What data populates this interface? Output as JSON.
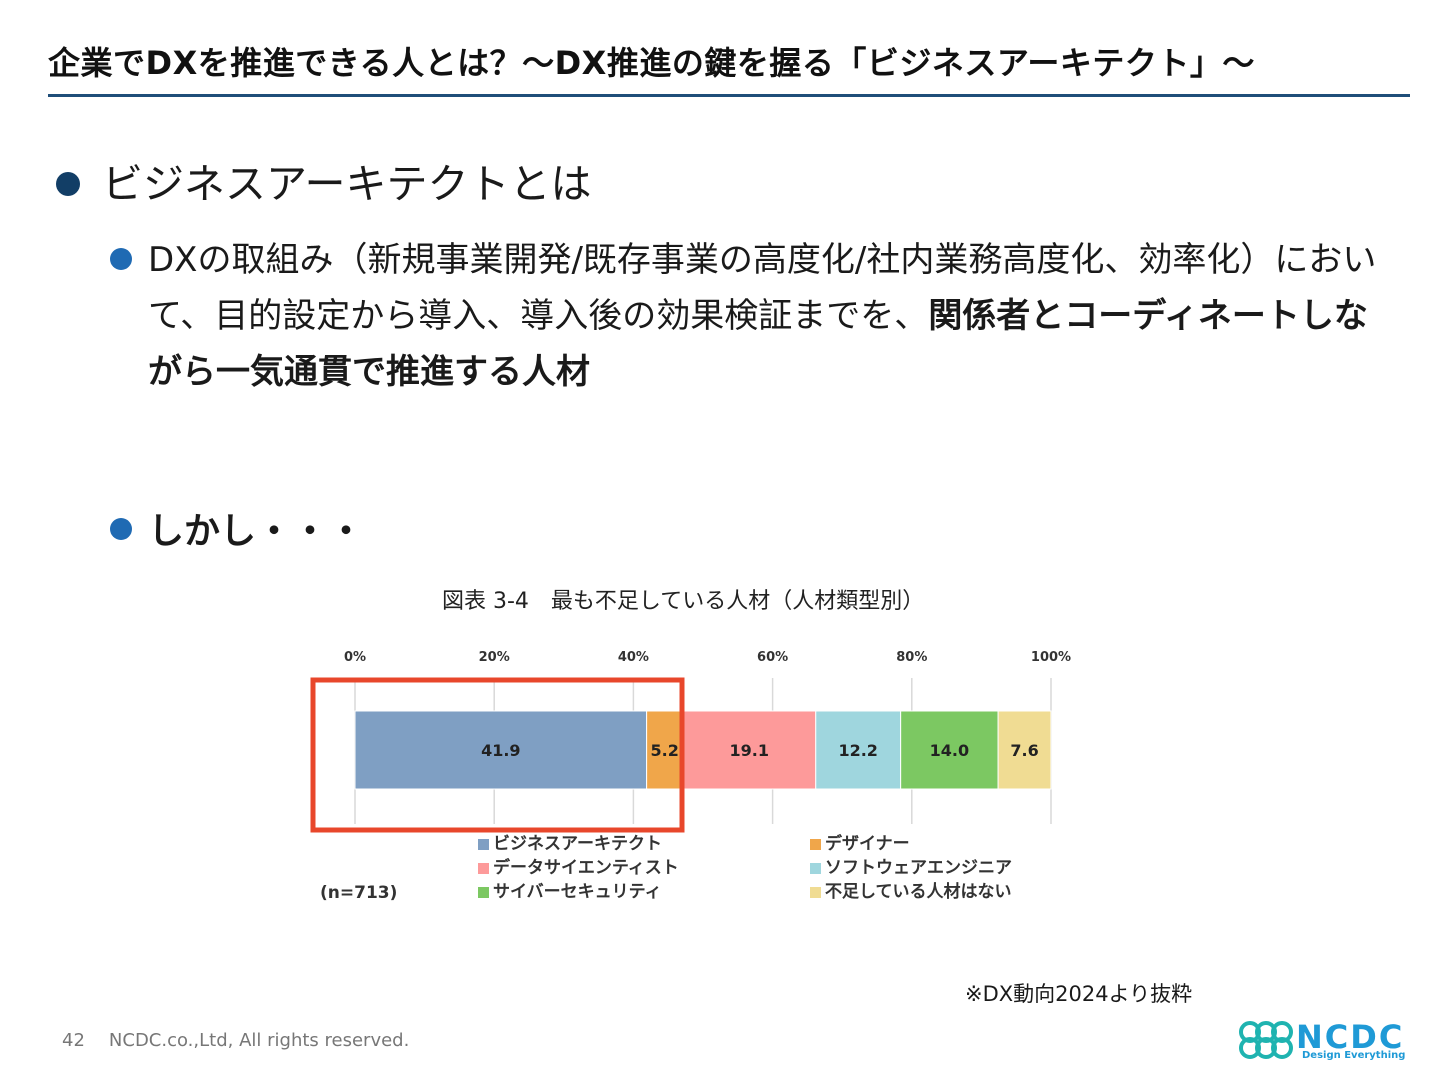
{
  "slide": {
    "title": "企業でDXを推進できる人とは？〜DX推進の鍵を握る「ビジネスアーキテクト」〜",
    "heading": "ビジネスアーキテクトとは",
    "bullet1_plain": "DXの取組み（新規事業開発/既存事業の高度化/社内業務高度化、効率化）において、目的設定から導入、導入後の効果検証までを、",
    "bullet1_bold": "関係者とコーディネートしながら一気通貫で推進する人材",
    "bullet2": "しかし・・・",
    "source_note": "※DX動向2024より抜粋",
    "page_number": "42",
    "copyright": "NCDC.co.,Ltd, All rights reserved.",
    "logo_text": "NCDC",
    "logo_tagline": "Design Everything"
  },
  "colors": {
    "title_rule": "#1f4e79",
    "highlight_box": "#e8472b"
  },
  "chart_data": {
    "type": "bar",
    "orientation": "horizontal-stacked",
    "title": "図表 3-4　最も不足している人材（人材類型別）",
    "xlim": [
      0,
      100
    ],
    "x_ticks": [
      "0%",
      "20%",
      "40%",
      "60%",
      "80%",
      "100%"
    ],
    "grid": true,
    "sample_note": "(n=713)",
    "legend_position": "bottom",
    "series": [
      {
        "name": "ビジネスアーキテクト",
        "value": 41.9,
        "label": "41.9",
        "color": "#7f9fc3"
      },
      {
        "name": "デザイナー",
        "value": 5.2,
        "label": "5.2",
        "color": "#f0a64a"
      },
      {
        "name": "データサイエンティスト",
        "value": 19.1,
        "label": "19.1",
        "color": "#fd9a9a"
      },
      {
        "name": "ソフトウェアエンジニア",
        "value": 12.2,
        "label": "12.2",
        "color": "#9fd6de"
      },
      {
        "name": "サイバーセキュリティ",
        "value": 14.0,
        "label": "14.0",
        "color": "#7cc862"
      },
      {
        "name": "不足している人材はない",
        "value": 7.6,
        "label": "7.6",
        "color": "#f0dc93"
      }
    ]
  }
}
